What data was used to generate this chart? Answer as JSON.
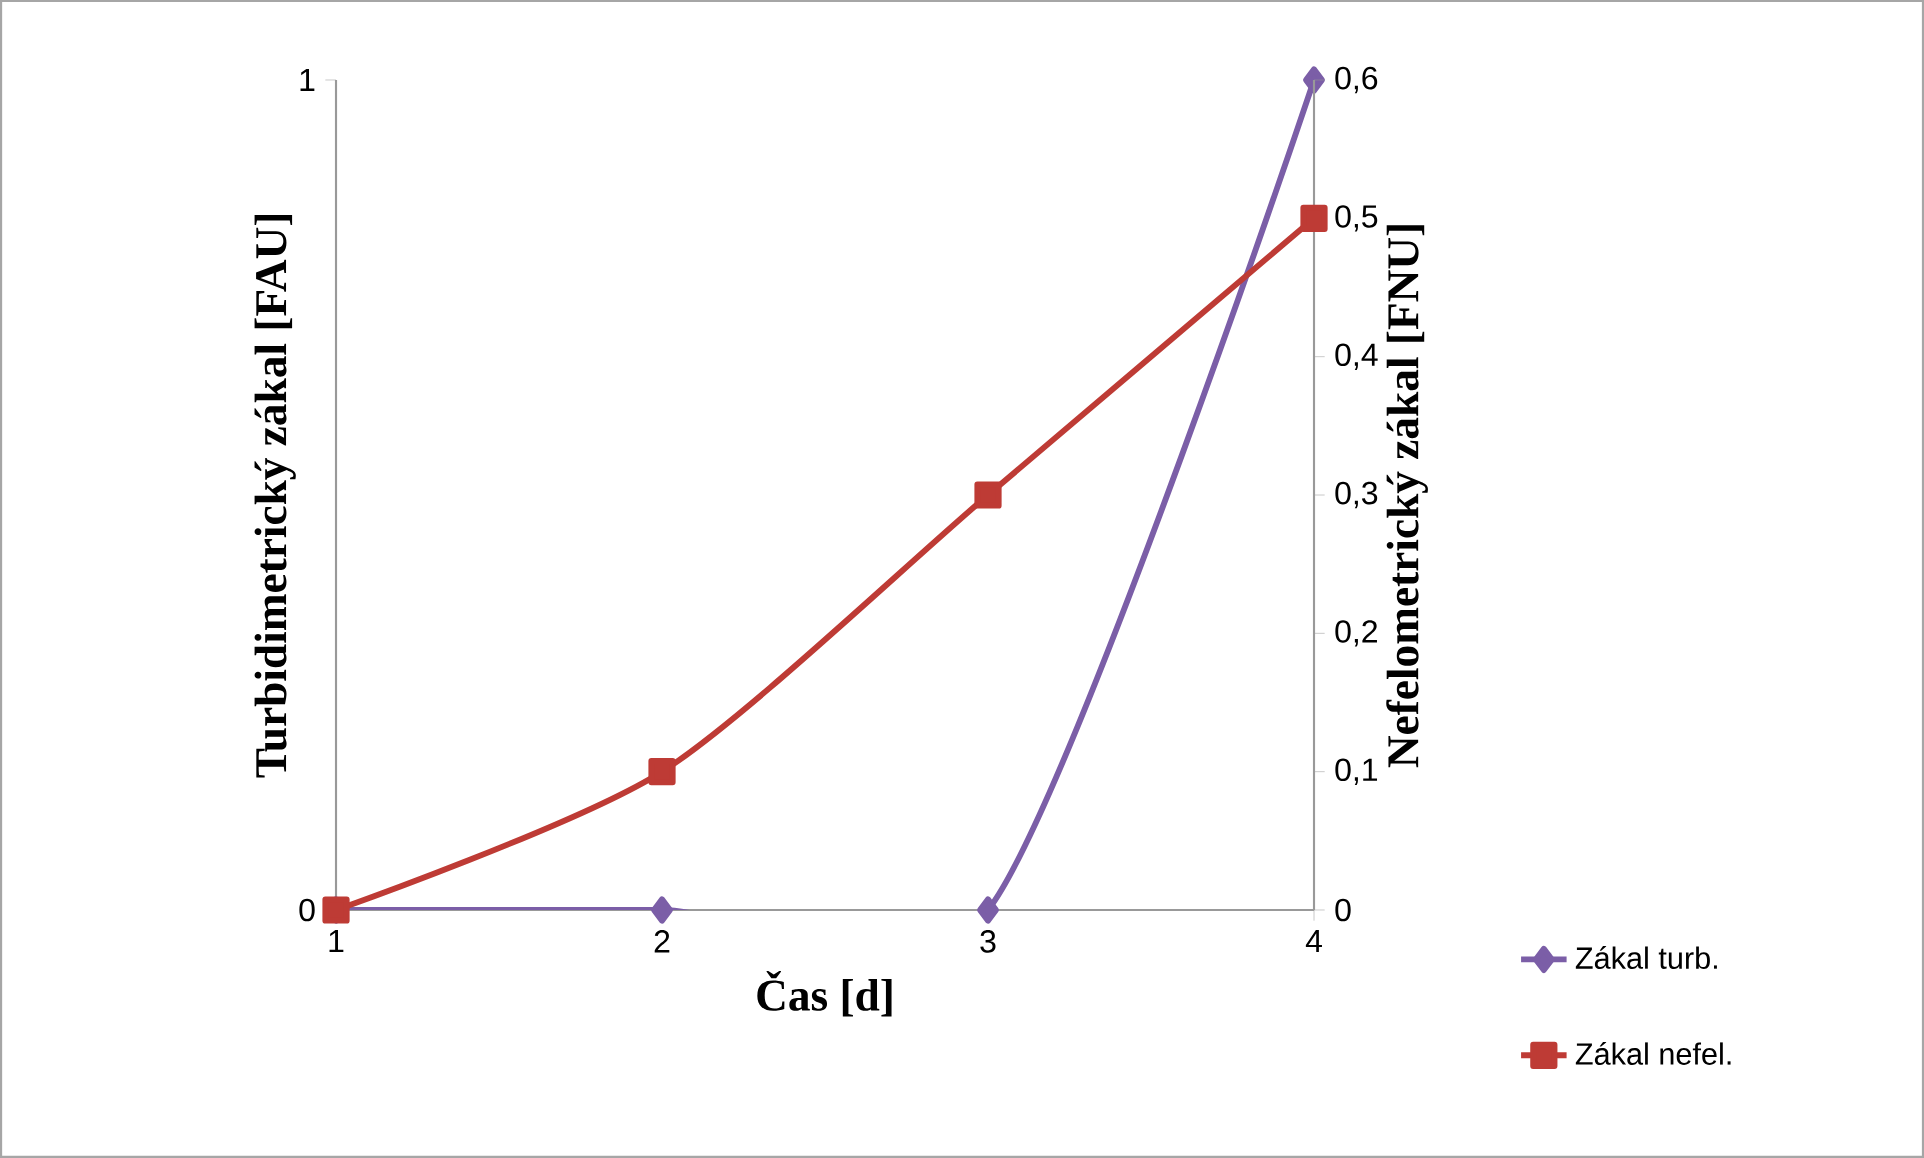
{
  "chart_data": {
    "type": "line",
    "xlabel": "Čas [d]",
    "ylabel": "Turbidimetrický  zákal [FAU]",
    "y2label": "Nefelometrický zákal [FNU]",
    "x": [
      1,
      2,
      3,
      4
    ],
    "xlim": [
      1,
      4
    ],
    "xticks": [
      1,
      2,
      3,
      4
    ],
    "ylim": [
      0,
      1
    ],
    "yticks": [
      0,
      1
    ],
    "y2lim": [
      0,
      0.6
    ],
    "y2ticks": [
      0,
      {
        "value": 0.1,
        "label": "0,1"
      },
      {
        "value": 0.2,
        "label": "0,2"
      },
      {
        "value": 0.3,
        "label": "0,3"
      },
      {
        "value": 0.4,
        "label": "0,4"
      },
      {
        "value": 0.5,
        "label": "0,5"
      },
      {
        "value": 0.6,
        "label": "0,6"
      }
    ],
    "legend": "bottom right",
    "grid": false,
    "series": [
      {
        "name": "Zákal turb.",
        "color": "#7b5ea7",
        "marker": "diamond",
        "values": [
          0,
          0,
          0,
          1
        ]
      },
      {
        "name": "Zákal nefel.",
        "color": "#be3b35",
        "marker": "square",
        "axis": "y2",
        "values": [
          0,
          0.1,
          0.3,
          0.5
        ]
      }
    ]
  }
}
